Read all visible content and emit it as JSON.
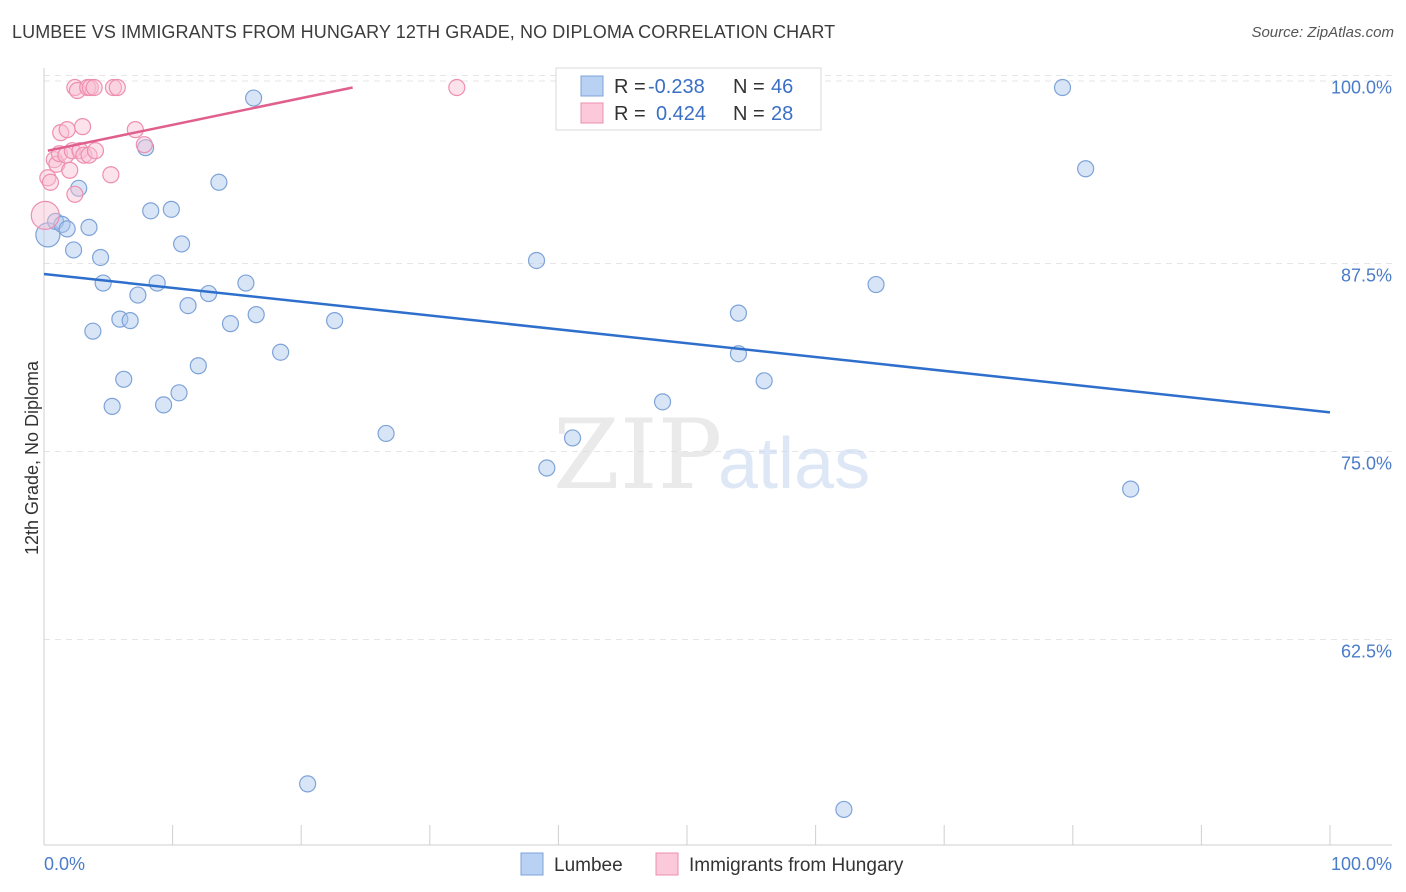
{
  "title": "LUMBEE VS IMMIGRANTS FROM HUNGARY 12TH GRADE, NO DIPLOMA CORRELATION CHART",
  "source": "Source: ZipAtlas.com",
  "watermark": {
    "part1": "ZIP",
    "part2": "atlas"
  },
  "chart_data": {
    "type": "scatter",
    "title": "LUMBEE VS IMMIGRANTS FROM HUNGARY 12TH GRADE, NO DIPLOMA CORRELATION CHART",
    "xlabel": "",
    "ylabel": "12th Grade, No Diploma",
    "xlim": [
      0,
      100
    ],
    "ylim": [
      50.5,
      100.5
    ],
    "y_ticks": [
      {
        "value": 100,
        "label": "100.0%"
      },
      {
        "value": 87.5,
        "label": "87.5%"
      },
      {
        "value": 75,
        "label": "75.0%"
      },
      {
        "value": 62.5,
        "label": "62.5%"
      }
    ],
    "x_tick_labels": {
      "min": "0.0%",
      "max": "100.0%"
    },
    "grid": true,
    "legend": {
      "position": "top-center",
      "rows": [
        {
          "r_label": "R =",
          "r_value": "-0.238",
          "n_label": "N =",
          "n_value": "46"
        },
        {
          "r_label": "R =",
          "r_value": "0.424",
          "n_label": "N =",
          "n_value": "28"
        }
      ]
    },
    "series": [
      {
        "name": "Lumbee",
        "color": "#a9c6ee",
        "stroke": "#7ea3d8",
        "line_color": "#2f6fcc",
        "trend": {
          "x": [
            0,
            100
          ],
          "y": [
            87.6,
            78.4
          ]
        },
        "points": [
          [
            0.3,
            90.2
          ],
          [
            0.9,
            91.1
          ],
          [
            1.4,
            90.9
          ],
          [
            1.8,
            90.6
          ],
          [
            2.3,
            89.2
          ],
          [
            2.7,
            93.3
          ],
          [
            3.5,
            90.7
          ],
          [
            3.8,
            83.8
          ],
          [
            4.4,
            88.7
          ],
          [
            4.6,
            87.0
          ],
          [
            5.3,
            78.8
          ],
          [
            5.9,
            84.6
          ],
          [
            6.2,
            80.6
          ],
          [
            6.7,
            84.5
          ],
          [
            7.3,
            86.2
          ],
          [
            7.9,
            96.0
          ],
          [
            8.3,
            91.8
          ],
          [
            8.8,
            87.0
          ],
          [
            9.3,
            78.9
          ],
          [
            9.9,
            91.9
          ],
          [
            10.5,
            79.7
          ],
          [
            10.7,
            89.6
          ],
          [
            11.2,
            85.5
          ],
          [
            12.0,
            81.5
          ],
          [
            12.8,
            86.3
          ],
          [
            13.6,
            93.7
          ],
          [
            14.5,
            84.3
          ],
          [
            15.7,
            87.0
          ],
          [
            16.3,
            99.3
          ],
          [
            16.5,
            84.9
          ],
          [
            18.4,
            82.4
          ],
          [
            20.5,
            53.7
          ],
          [
            22.6,
            84.5
          ],
          [
            26.6,
            77.0
          ],
          [
            38.3,
            88.5
          ],
          [
            39.1,
            74.7
          ],
          [
            41.1,
            76.7
          ],
          [
            48.1,
            79.1
          ],
          [
            54.0,
            85.0
          ],
          [
            54.0,
            82.3
          ],
          [
            56.0,
            80.5
          ],
          [
            64.7,
            86.9
          ],
          [
            62.2,
            52.0
          ],
          [
            79.2,
            100.0
          ],
          [
            81.0,
            94.6
          ],
          [
            84.5,
            73.3
          ]
        ]
      },
      {
        "name": "Immigrants from Hungary",
        "color": "#f9bfd2",
        "stroke": "#ee8fb0",
        "line_color": "#e05f8d",
        "trend": {
          "x": [
            0.3,
            24.0
          ],
          "y": [
            95.8,
            100.0
          ]
        },
        "points": [
          [
            0.3,
            94.0
          ],
          [
            0.5,
            93.7
          ],
          [
            0.8,
            95.2
          ],
          [
            1.0,
            94.9
          ],
          [
            1.2,
            95.6
          ],
          [
            1.3,
            97.0
          ],
          [
            1.7,
            95.5
          ],
          [
            1.8,
            97.2
          ],
          [
            2.0,
            94.5
          ],
          [
            2.2,
            95.8
          ],
          [
            2.4,
            92.9
          ],
          [
            2.4,
            100.0
          ],
          [
            2.6,
            99.8
          ],
          [
            2.8,
            95.8
          ],
          [
            3.0,
            97.4
          ],
          [
            3.1,
            95.5
          ],
          [
            3.4,
            100.0
          ],
          [
            3.5,
            95.5
          ],
          [
            3.6,
            100.0
          ],
          [
            3.9,
            100.0
          ],
          [
            4.0,
            95.8
          ],
          [
            5.2,
            94.2
          ],
          [
            5.4,
            100.0
          ],
          [
            5.7,
            100.0
          ],
          [
            7.1,
            97.2
          ],
          [
            7.8,
            96.2
          ],
          [
            32.1,
            100.0
          ],
          [
            0.1,
            91.5
          ]
        ]
      }
    ]
  }
}
